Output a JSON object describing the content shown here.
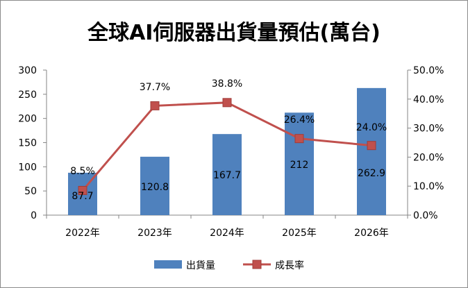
{
  "chart_data": {
    "type": "bar",
    "title": "全球AI伺服器出貨量預估(萬台)",
    "categories": [
      "2022年",
      "2023年",
      "2024年",
      "2025年",
      "2026年"
    ],
    "series": [
      {
        "name": "出貨量",
        "type": "bar",
        "axis": "left",
        "values": [
          87.7,
          120.8,
          167.7,
          212,
          262.9
        ],
        "labels": [
          "87.7",
          "120.8",
          "167.7",
          "212",
          "262.9"
        ],
        "color": "#4f81bd"
      },
      {
        "name": "成長率",
        "type": "line",
        "axis": "right",
        "values": [
          8.5,
          37.7,
          38.8,
          26.4,
          24.0
        ],
        "labels": [
          "8.5%",
          "37.7%",
          "38.8%",
          "26.4%",
          "24.0%"
        ],
        "color": "#c0504d"
      }
    ],
    "y_left": {
      "min": 0,
      "max": 300,
      "ticks": [
        "0",
        "50",
        "100",
        "150",
        "200",
        "250",
        "300"
      ]
    },
    "y_right": {
      "min": 0,
      "max": 50,
      "ticks": [
        "0.0%",
        "10.0%",
        "20.0%",
        "30.0%",
        "40.0%",
        "50.0%"
      ]
    },
    "grid": false,
    "legend_position": "bottom"
  }
}
